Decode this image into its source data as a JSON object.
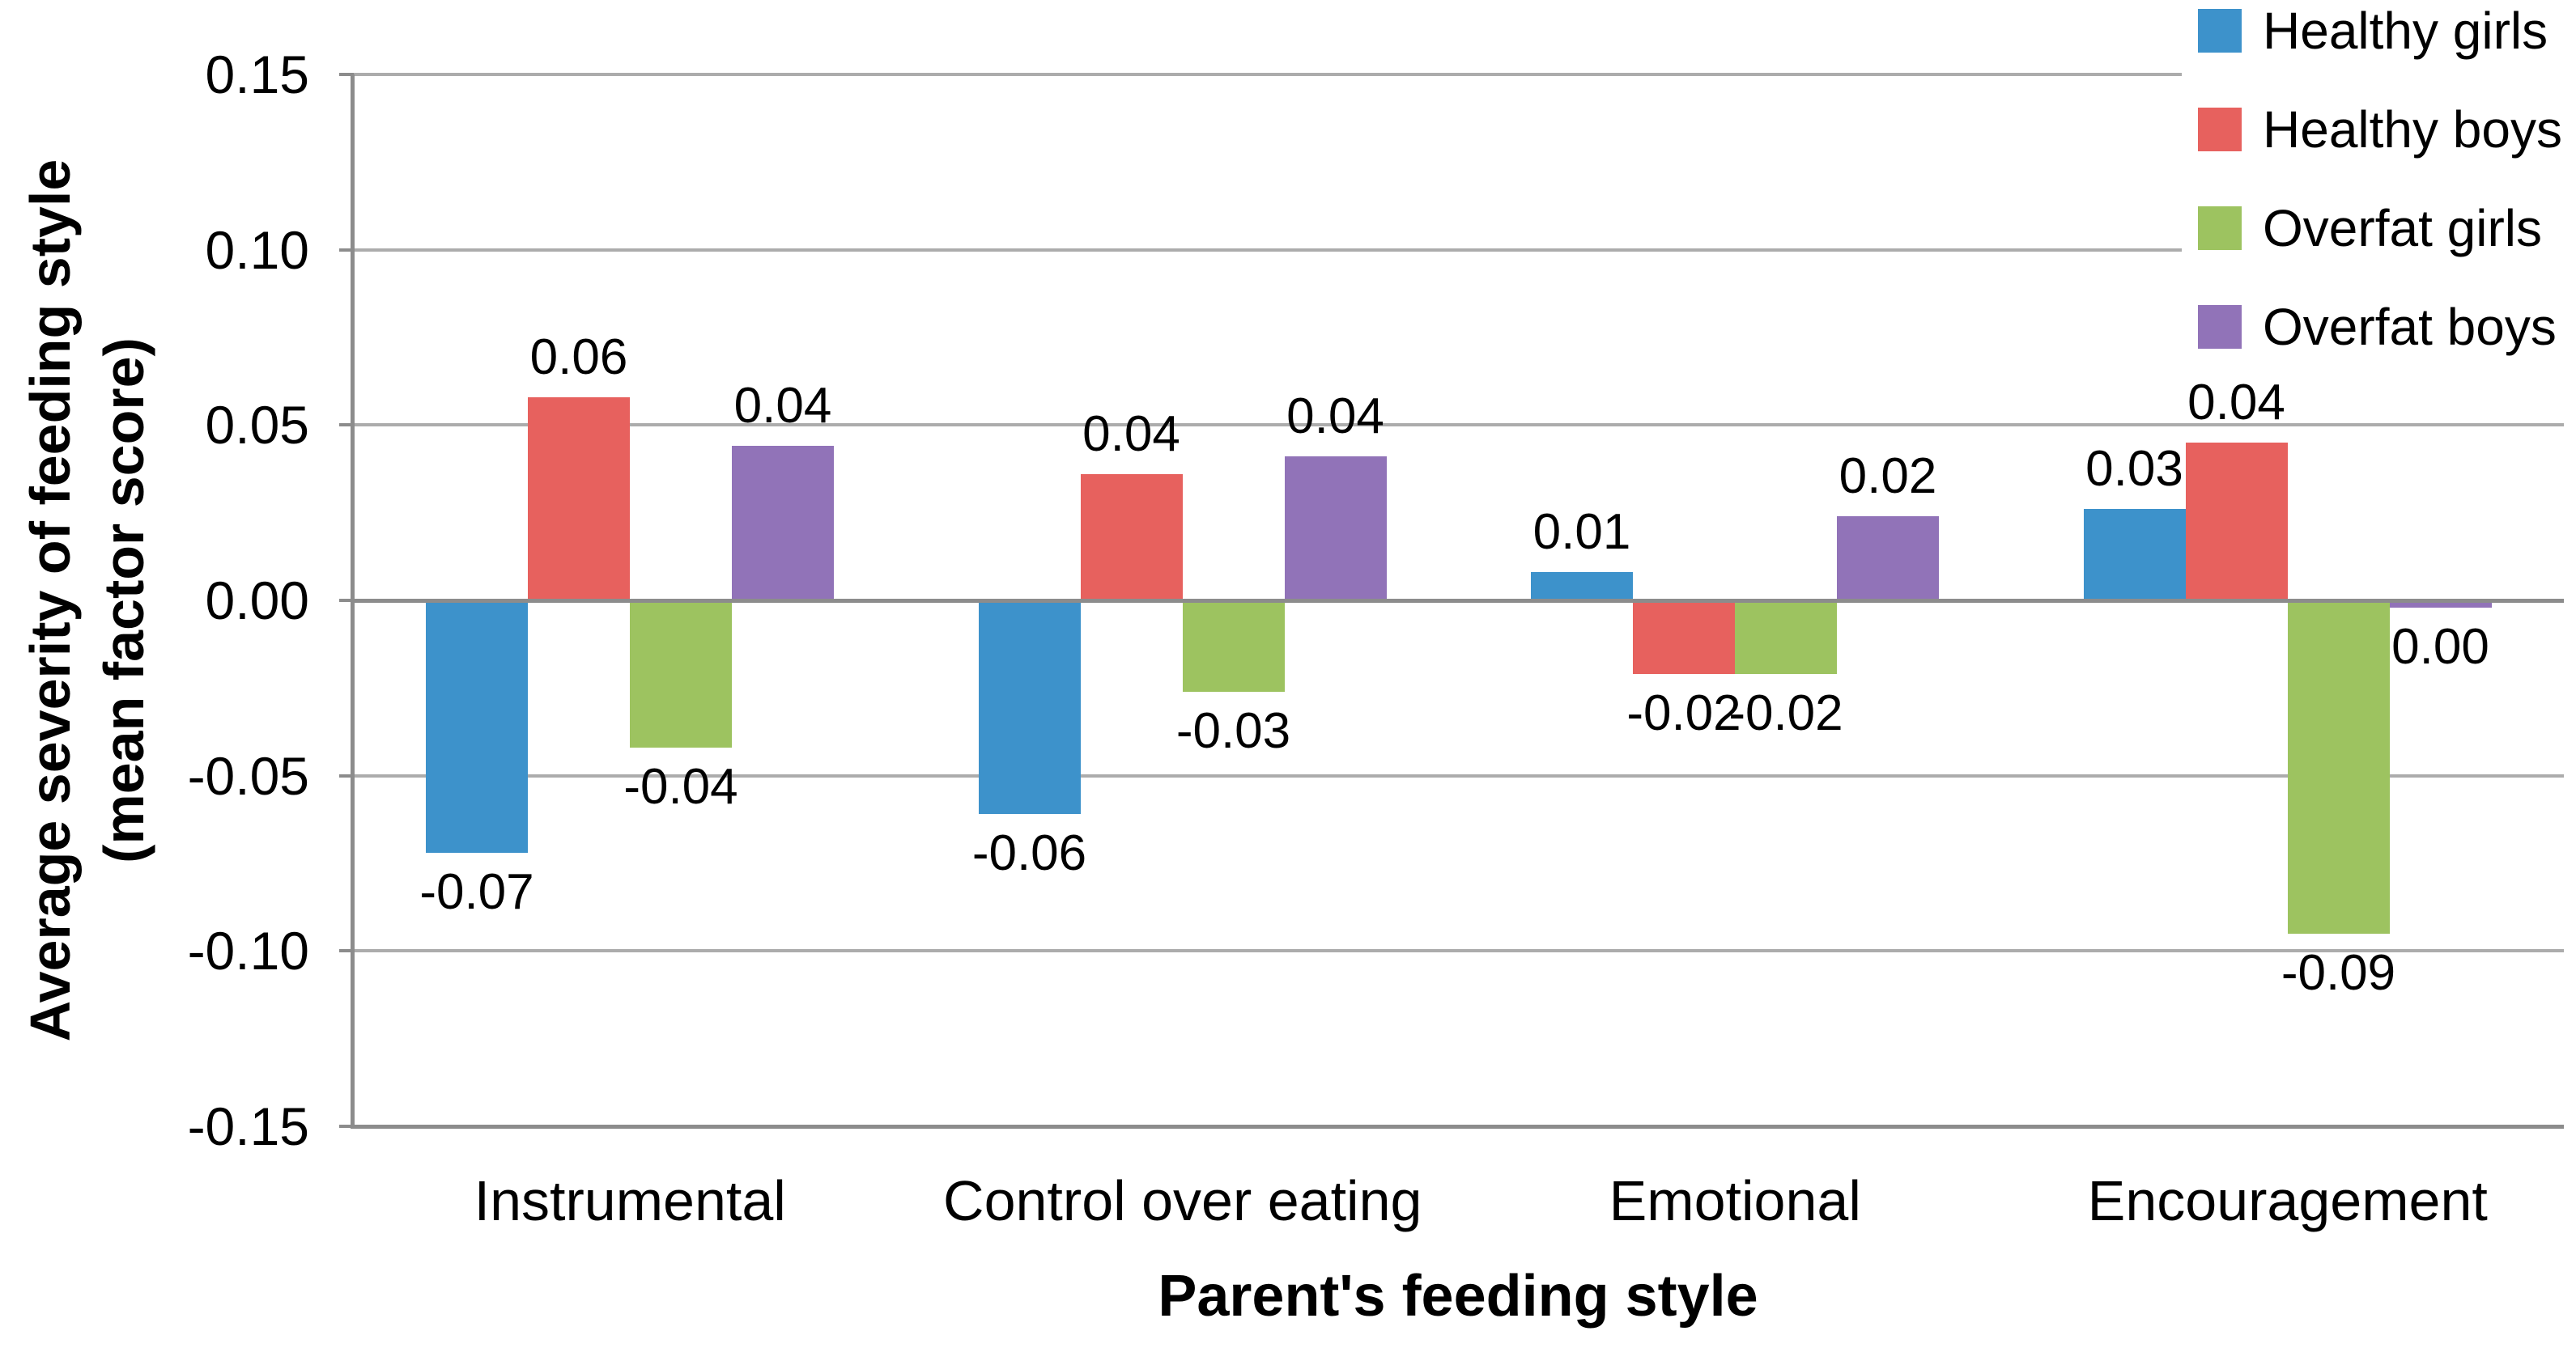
{
  "chart_data": {
    "type": "bar",
    "title": "",
    "xlabel": "Parent's feeding style",
    "ylabel": "Average severity of feeding style (mean factor score)",
    "ylabel_lines": [
      "Average severity of feeding style",
      "(mean factor score)"
    ],
    "categories": [
      "Instrumental",
      "Control over eating",
      "Emotional",
      "Encouragement"
    ],
    "series": [
      {
        "name": "Healthy girls",
        "color": "#3D92CB",
        "values": [
          -0.072,
          -0.061,
          0.008,
          0.026
        ],
        "data_labels": [
          "-0.07",
          "-0.06",
          "0.01",
          "0.03"
        ]
      },
      {
        "name": "Healthy boys",
        "color": "#E7615E",
        "values": [
          0.058,
          0.036,
          -0.021,
          0.045
        ],
        "data_labels": [
          "0.06",
          "0.04",
          "-0.02",
          "0.04"
        ]
      },
      {
        "name": "Overfat girls",
        "color": "#9DC360",
        "values": [
          -0.042,
          -0.026,
          -0.021,
          -0.095
        ],
        "data_labels": [
          "-0.04",
          "-0.03",
          "-0.02",
          "-0.09"
        ]
      },
      {
        "name": "Overfat boys",
        "color": "#9173B8",
        "values": [
          0.044,
          0.041,
          0.024,
          -0.002
        ],
        "data_labels": [
          "0.04",
          "0.04",
          "0.02",
          "0.00"
        ]
      }
    ],
    "y_axis": {
      "min": -0.15,
      "max": 0.15,
      "step": 0.05,
      "tick_labels": [
        "0.15",
        "0.10",
        "0.05",
        "0.00",
        "-0.05",
        "-0.10",
        "-0.15"
      ]
    },
    "grid": true,
    "legend_position": "top-right"
  },
  "colors": {
    "background": "#FFFFFF",
    "gridline": "#ACACAC",
    "zero_line": "#8C8C8C",
    "axis_line": "#8C8C8C",
    "text": "#000000"
  }
}
